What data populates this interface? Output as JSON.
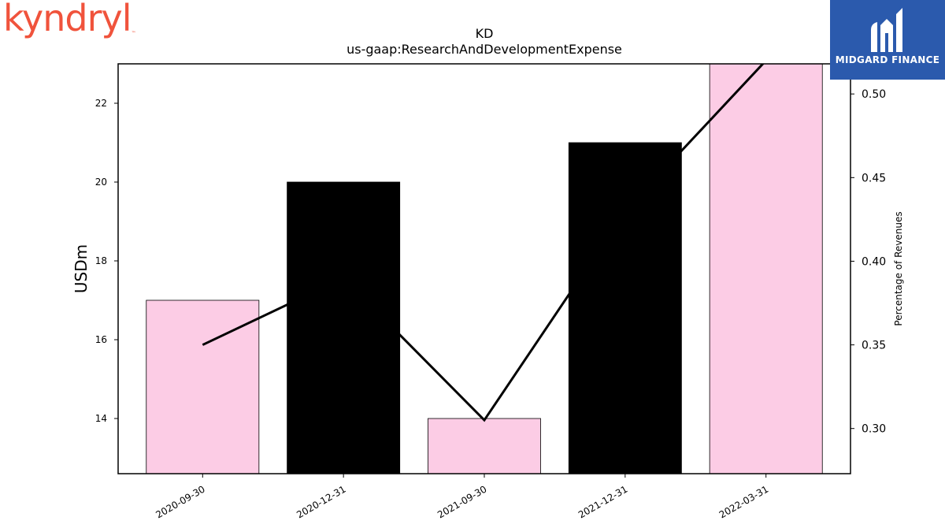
{
  "logos": {
    "left_brand": "kyndryl",
    "left_brand_mark": "™",
    "left_brand_color": "#f0533c",
    "right_brand": "MIDGARD FINANCE",
    "right_brand_color": "#2b5aad"
  },
  "chart_data": {
    "type": "bar",
    "title": "KD",
    "subtitle": "us-gaap:ResearchAndDevelopmentExpense",
    "ylabel": "USDm",
    "y2label": "Percentage of Revenues",
    "categories": [
      "2020-09-30",
      "2020-12-31",
      "2021-09-30",
      "2021-12-31",
      "2022-03-31"
    ],
    "series": [
      {
        "kind": "bar",
        "axis": "left",
        "values": [
          17,
          20,
          14,
          21,
          23
        ],
        "colors": [
          "#fccce5",
          "#000000",
          "#fccce5",
          "#000000",
          "#fccce5"
        ]
      },
      {
        "kind": "line",
        "axis": "right",
        "color": "#000000",
        "values": [
          0.35,
          0.39,
          0.305,
          0.43,
          0.52
        ]
      }
    ],
    "ylim": [
      12.6,
      23.0
    ],
    "y2lim": [
      0.273,
      0.518
    ],
    "yticks": [
      14,
      16,
      18,
      20,
      22
    ],
    "y2ticks": [
      "0.30",
      "0.35",
      "0.40",
      "0.45",
      "0.50"
    ],
    "grid": false,
    "legend": "none"
  }
}
